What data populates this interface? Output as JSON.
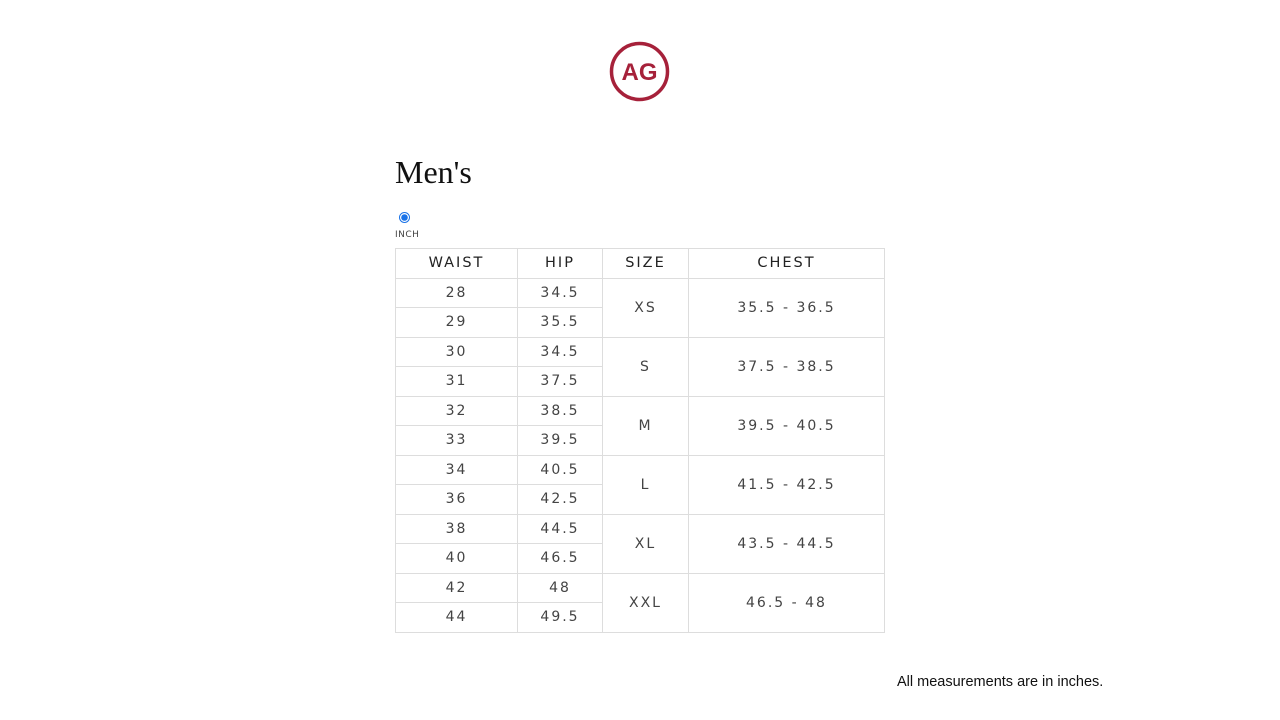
{
  "brand": {
    "logo_text": "AG",
    "color": "#a6213a"
  },
  "title": "Men's",
  "unit_option": {
    "label": "INCH",
    "selected": true
  },
  "table": {
    "headers": [
      "WAIST",
      "HIP",
      "SIZE",
      "CHEST"
    ],
    "groups": [
      {
        "size": "XS",
        "chest": "35.5 - 36.5",
        "rows": [
          [
            "28",
            "34.5"
          ],
          [
            "29",
            "35.5"
          ]
        ]
      },
      {
        "size": "S",
        "chest": "37.5 - 38.5",
        "rows": [
          [
            "30",
            "34.5"
          ],
          [
            "31",
            "37.5"
          ]
        ]
      },
      {
        "size": "M",
        "chest": "39.5 - 40.5",
        "rows": [
          [
            "32",
            "38.5"
          ],
          [
            "33",
            "39.5"
          ]
        ]
      },
      {
        "size": "L",
        "chest": "41.5 - 42.5",
        "rows": [
          [
            "34",
            "40.5"
          ],
          [
            "36",
            "42.5"
          ]
        ]
      },
      {
        "size": "XL",
        "chest": "43.5 - 44.5",
        "rows": [
          [
            "38",
            "44.5"
          ],
          [
            "40",
            "46.5"
          ]
        ]
      },
      {
        "size": "XXL",
        "chest": "46.5 - 48",
        "rows": [
          [
            "42",
            "48"
          ],
          [
            "44",
            "49.5"
          ]
        ]
      }
    ]
  },
  "note": "All measurements are in inches."
}
